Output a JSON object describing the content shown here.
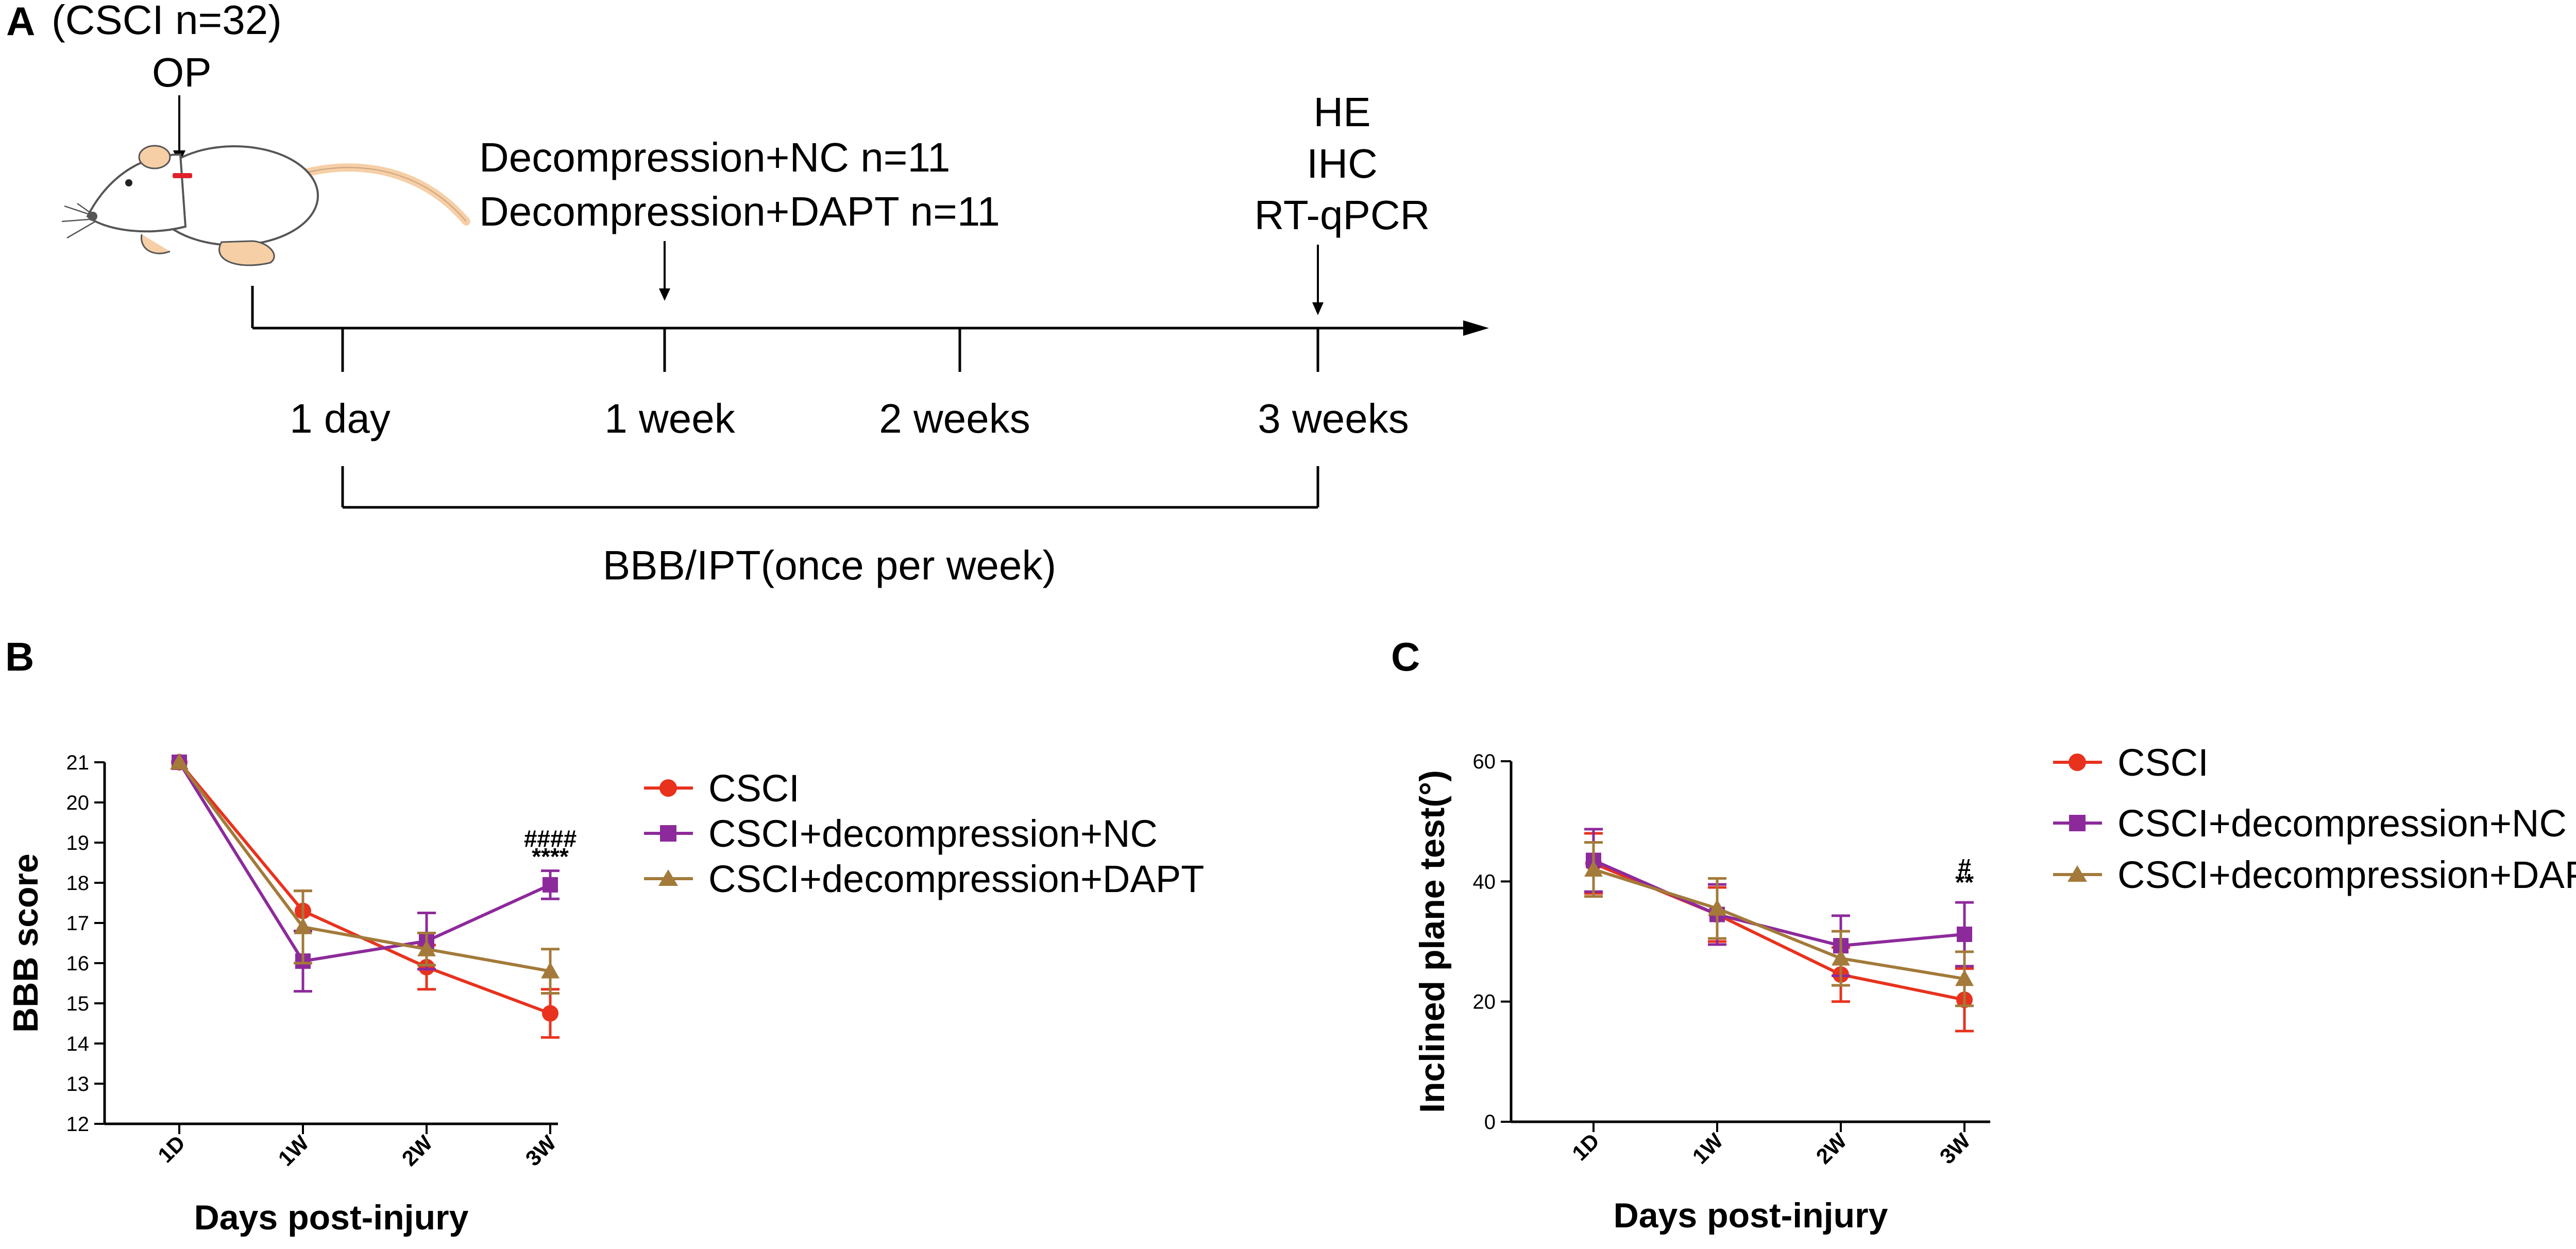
{
  "panel_labels": [
    "A",
    "B",
    "C"
  ],
  "timeline": {
    "group_label": "(CSCI n=32)",
    "op_label": "OP",
    "treatment_lines": [
      "Decompression+NC n=11",
      "Decompression+DAPT n=11"
    ],
    "assays": [
      "HE",
      "IHC",
      "RT-qPCR"
    ],
    "ticks": [
      "1 day",
      "1 week",
      "2 weeks",
      "3 weeks"
    ],
    "bracket_label": "BBB/IPT(once per week)"
  },
  "colors": {
    "csci": "#e8321e",
    "nc": "#8d2a9b",
    "dapt": "#a37a3a",
    "axis": "#000000",
    "mouse_body": "#ffffff",
    "mouse_outline": "#555555",
    "mouse_pink": "#f6cfa6",
    "incision": "#e0202a"
  },
  "legend": [
    "CSCI",
    "CSCI+decompression+NC",
    "CSCI+decompression+DAPT"
  ],
  "chart_data": [
    {
      "type": "line",
      "panel": "B",
      "categories": [
        "1D",
        "1W",
        "2W",
        "3W"
      ],
      "xlabel": "Days post-injury",
      "ylabel": "BBB score",
      "ylim": [
        12,
        21
      ],
      "yticks": [
        12,
        13,
        14,
        15,
        16,
        17,
        18,
        19,
        20,
        21
      ],
      "series": [
        {
          "name": "CSCI",
          "marker": "circle",
          "values": [
            21,
            17.3,
            15.9,
            14.75
          ],
          "errors": [
            0,
            0.5,
            0.55,
            0.6
          ]
        },
        {
          "name": "CSCI+decompression+NC",
          "marker": "square",
          "values": [
            21,
            16.05,
            16.55,
            17.95
          ],
          "errors": [
            0,
            0.75,
            0.7,
            0.35
          ]
        },
        {
          "name": "CSCI+decompression+DAPT",
          "marker": "triangle",
          "values": [
            21,
            16.9,
            16.35,
            15.8
          ],
          "errors": [
            0,
            0.9,
            0.4,
            0.55
          ]
        }
      ],
      "annotations": [
        {
          "category": "3W",
          "text": "####",
          "y": 18.9
        },
        {
          "category": "3W",
          "text": "****",
          "y": 18.45
        }
      ]
    },
    {
      "type": "line",
      "panel": "C",
      "categories": [
        "1D",
        "1W",
        "2W",
        "3W"
      ],
      "xlabel": "Days post-injury",
      "ylabel": "Inclined plane test(°)",
      "ylim": [
        0,
        60
      ],
      "yticks": [
        0,
        20,
        40,
        60
      ],
      "series": [
        {
          "name": "CSCI",
          "marker": "circle",
          "values": [
            43,
            34.5,
            24.5,
            20.3
          ],
          "errors": [
            5,
            4.5,
            4.5,
            5.2
          ]
        },
        {
          "name": "CSCI+decompression+NC",
          "marker": "square",
          "values": [
            43.5,
            34.5,
            29.3,
            31.2
          ],
          "errors": [
            5.2,
            5,
            5,
            5.3
          ]
        },
        {
          "name": "CSCI+decompression+DAPT",
          "marker": "triangle",
          "values": [
            42,
            35.5,
            27.2,
            23.8
          ],
          "errors": [
            4.5,
            5,
            4.5,
            4.5
          ]
        }
      ],
      "annotations": [
        {
          "category": "3W",
          "text": "#",
          "y": 41
        },
        {
          "category": "3W",
          "text": "**",
          "y": 38.5
        }
      ]
    }
  ]
}
